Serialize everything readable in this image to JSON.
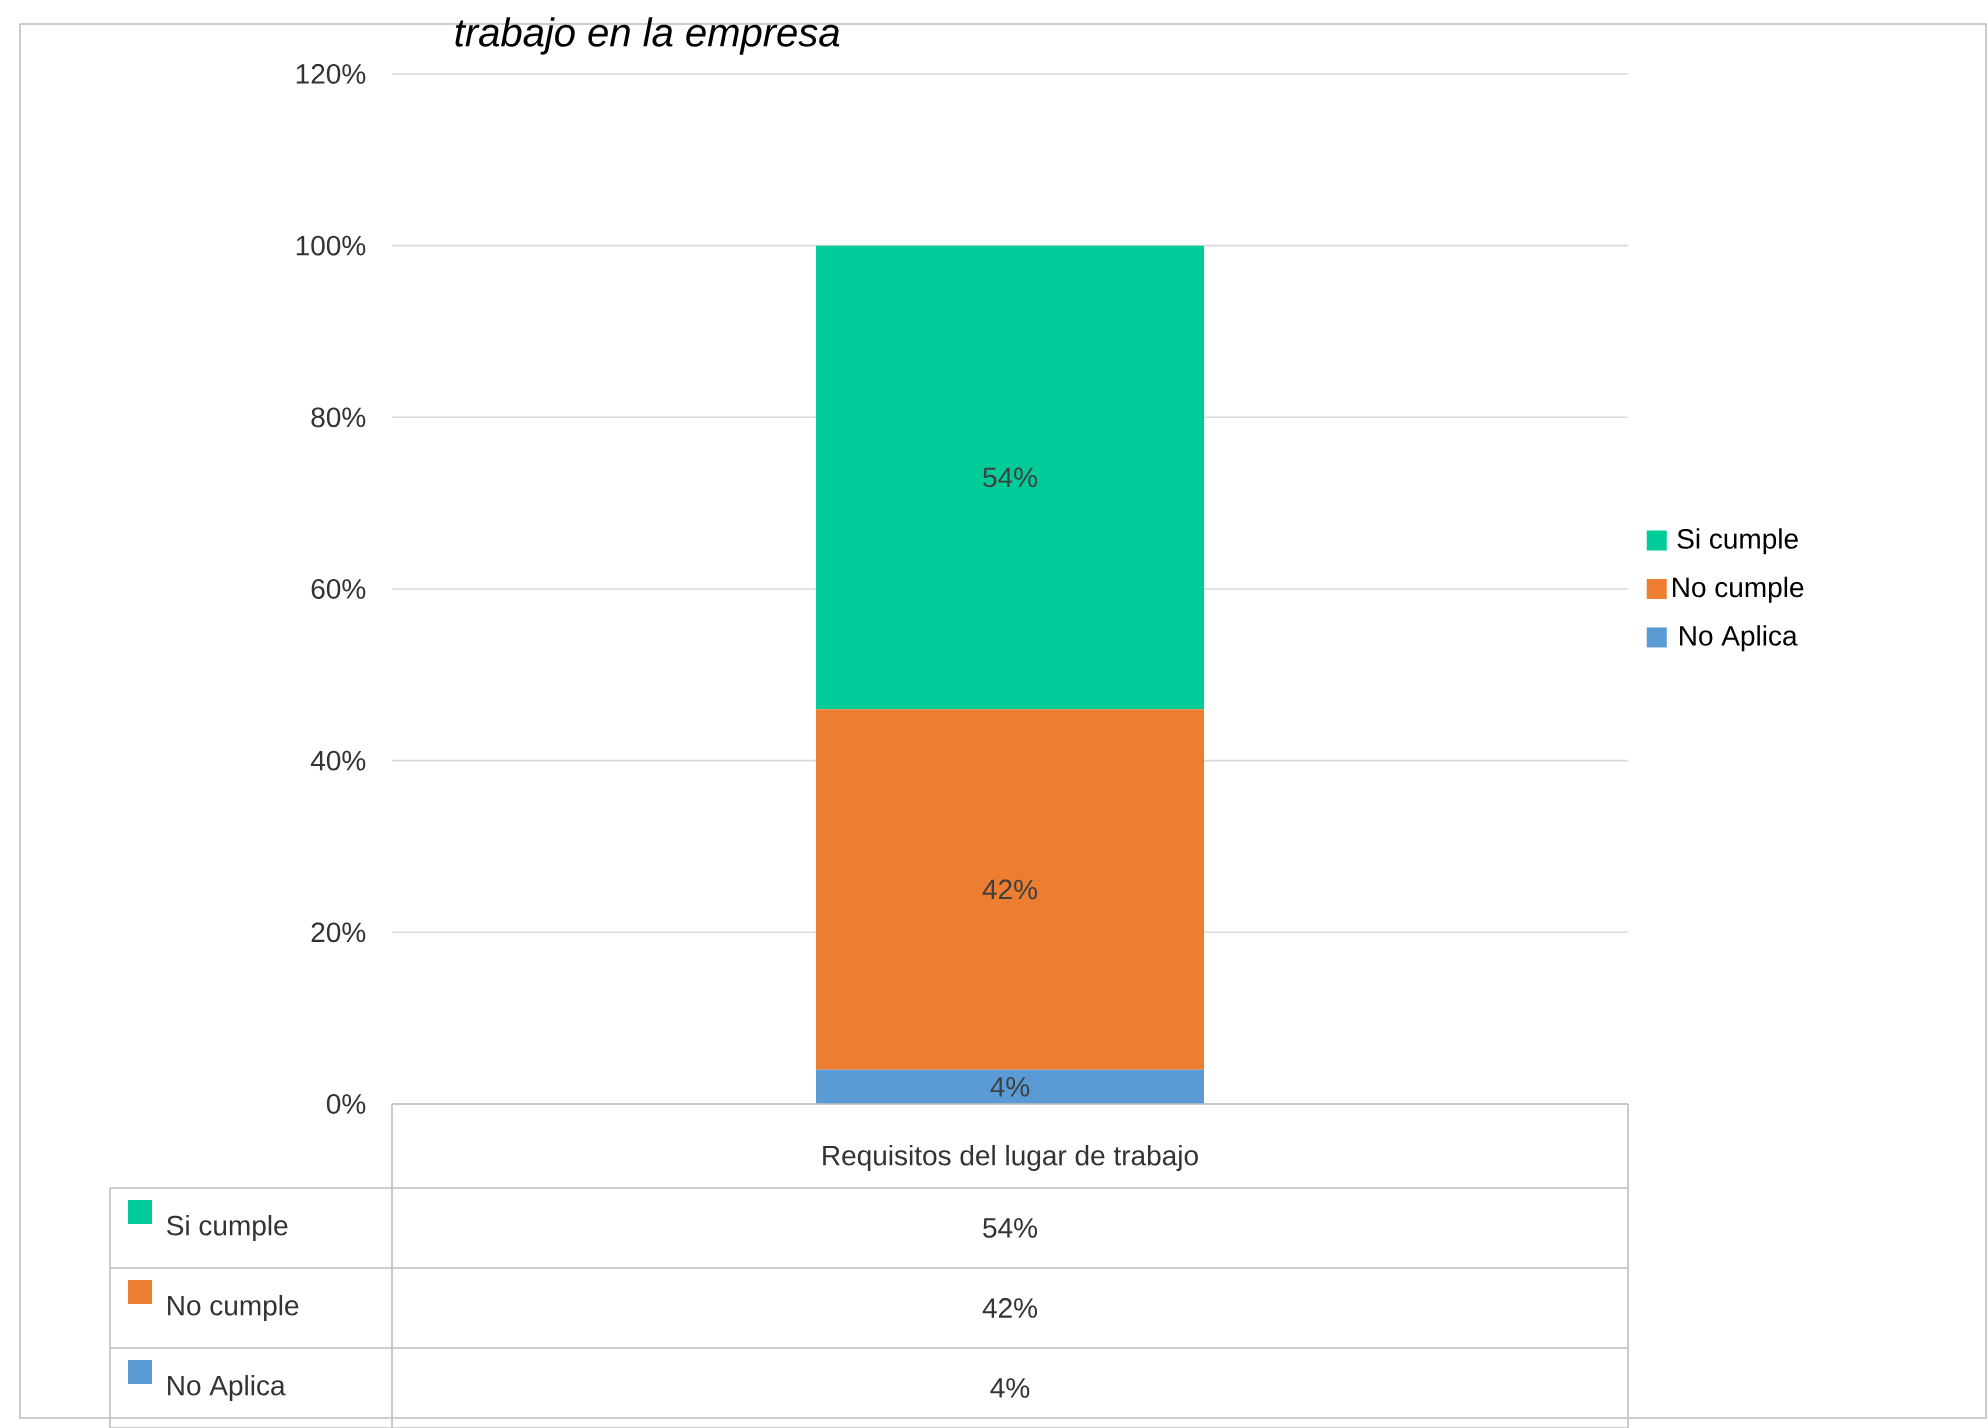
{
  "chart_data": {
    "type": "bar",
    "title": "trabajo en la empresa",
    "stacked": true,
    "categories": [
      "Requisitos del lugar de trabajo"
    ],
    "series": [
      {
        "name": "No Aplica",
        "color": "#5b9bd5",
        "values": [
          4
        ],
        "value_labels": [
          "4%"
        ]
      },
      {
        "name": "No cumple",
        "color": "#ed7d31",
        "values": [
          42
        ],
        "value_labels": [
          "42%"
        ]
      },
      {
        "name": "Si cumple",
        "color": "#00cc99",
        "values": [
          54
        ],
        "value_labels": [
          "54%"
        ]
      }
    ],
    "ylim": [
      0,
      120
    ],
    "yticks": [
      {
        "value": 0,
        "label": "0%"
      },
      {
        "value": 20,
        "label": "20%"
      },
      {
        "value": 40,
        "label": "40%"
      },
      {
        "value": 60,
        "label": "60%"
      },
      {
        "value": 80,
        "label": "80%"
      },
      {
        "value": 100,
        "label": "100%"
      },
      {
        "value": 120,
        "label": "120%"
      }
    ],
    "grid": "y",
    "legend": "right"
  }
}
